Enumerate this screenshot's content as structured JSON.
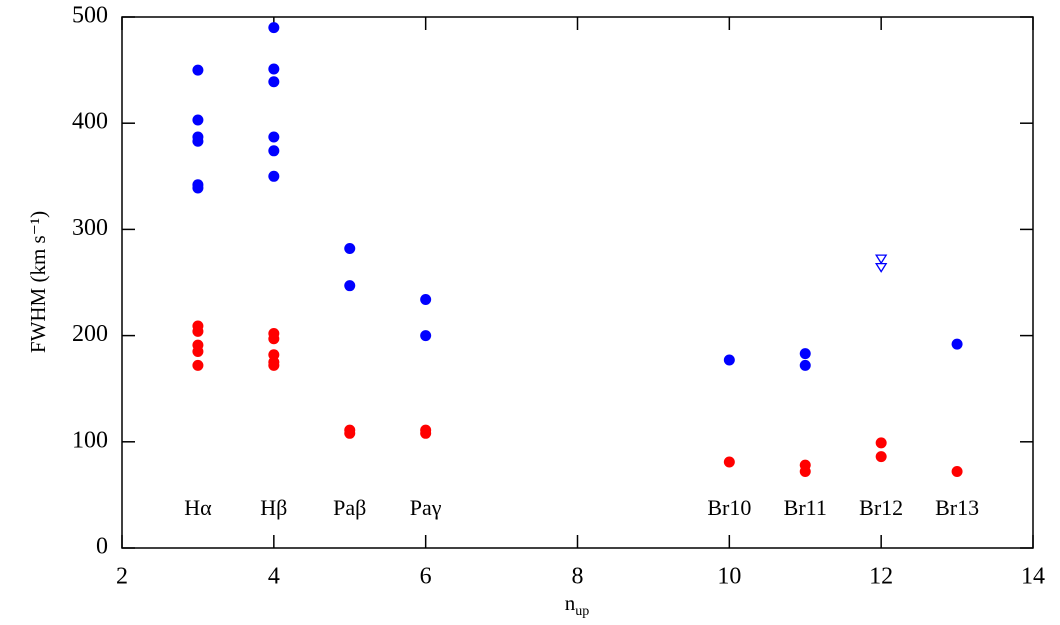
{
  "chart_data": {
    "type": "scatter",
    "ylabel": "FWHM (km s⁻¹)",
    "xlabel": {
      "text": "n",
      "subscript": "up"
    },
    "xlim": [
      2,
      14
    ],
    "xticks": [
      2,
      4,
      6,
      8,
      10,
      12,
      14
    ],
    "ylim": [
      0,
      500
    ],
    "yticks": [
      0,
      100,
      200,
      300,
      400,
      500
    ],
    "series": [
      {
        "color": "#0000ff",
        "marker": "filled-circle",
        "x": [
          3,
          3,
          3,
          3,
          3,
          3,
          4,
          4,
          4,
          4,
          4,
          4,
          5,
          5,
          6,
          6,
          10,
          11,
          11,
          13
        ],
        "values": [
          450,
          403,
          387,
          383,
          342,
          339,
          490,
          451,
          439,
          387,
          374,
          350,
          282,
          247,
          234,
          200,
          177,
          183,
          172,
          192
        ]
      },
      {
        "color": "#ff0000",
        "marker": "filled-circle",
        "x": [
          3,
          3,
          3,
          3,
          3,
          4,
          4,
          4,
          4,
          4,
          5,
          5,
          6,
          6,
          10,
          11,
          11,
          12,
          12,
          13
        ],
        "values": [
          209,
          204,
          191,
          185,
          172,
          202,
          197,
          182,
          175,
          172,
          111,
          108,
          111,
          108,
          81,
          78,
          72,
          99,
          86,
          72
        ]
      },
      {
        "color": "#0000ff",
        "marker": "open-triangle-down",
        "x": [
          12,
          12
        ],
        "values": [
          272,
          264
        ]
      }
    ],
    "annotations": [
      {
        "text": "Hα",
        "x": 3
      },
      {
        "text": "Hβ",
        "x": 4
      },
      {
        "text": "Paβ",
        "x": 5
      },
      {
        "text": "Paγ",
        "x": 6
      },
      {
        "text": "Br10",
        "x": 10
      },
      {
        "text": "Br11",
        "x": 11
      },
      {
        "text": "Br12",
        "x": 12
      },
      {
        "text": "Br13",
        "x": 13
      }
    ]
  }
}
